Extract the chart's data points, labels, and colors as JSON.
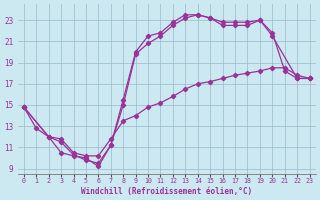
{
  "xlabel": "Windchill (Refroidissement éolien,°C)",
  "bg_color": "#cce8f0",
  "line_color": "#993399",
  "grid_color": "#99bbcc",
  "xlim": [
    -0.5,
    23.5
  ],
  "ylim": [
    8.5,
    24.5
  ],
  "xticks": [
    0,
    1,
    2,
    3,
    4,
    5,
    6,
    7,
    8,
    9,
    10,
    11,
    12,
    13,
    14,
    15,
    16,
    17,
    18,
    19,
    20,
    21,
    22,
    23
  ],
  "yticks": [
    9,
    11,
    13,
    15,
    17,
    19,
    21,
    23
  ],
  "curve1_x": [
    0,
    1,
    2,
    3,
    4,
    5,
    6,
    7,
    8,
    9,
    10,
    11,
    12,
    13,
    14,
    15,
    16,
    17,
    18,
    19,
    20,
    22,
    23
  ],
  "curve1_y": [
    14.8,
    12.8,
    12.0,
    10.5,
    10.2,
    10.0,
    9.2,
    11.2,
    15.5,
    20.0,
    21.5,
    21.8,
    22.8,
    23.5,
    23.5,
    23.2,
    22.5,
    22.5,
    22.5,
    23.0,
    21.5,
    17.5,
    17.5
  ],
  "curve2_x": [
    0,
    2,
    3,
    4,
    5,
    6,
    7,
    8,
    9,
    10,
    11,
    12,
    13,
    14,
    15,
    16,
    17,
    18,
    19,
    20,
    21,
    22,
    23
  ],
  "curve2_y": [
    14.8,
    12.0,
    11.5,
    10.3,
    9.8,
    9.5,
    11.2,
    15.0,
    19.8,
    20.8,
    21.5,
    22.5,
    23.2,
    23.5,
    23.2,
    22.8,
    22.8,
    22.8,
    23.0,
    21.8,
    18.2,
    17.5,
    17.5
  ],
  "curve3_x": [
    0,
    2,
    3,
    4,
    5,
    6,
    7,
    8,
    9,
    10,
    11,
    12,
    13,
    14,
    15,
    16,
    17,
    18,
    19,
    20,
    21,
    22,
    23
  ],
  "curve3_y": [
    14.8,
    12.0,
    11.8,
    10.5,
    10.2,
    10.2,
    11.8,
    13.5,
    14.0,
    14.8,
    15.2,
    15.8,
    16.5,
    17.0,
    17.2,
    17.5,
    17.8,
    18.0,
    18.2,
    18.5,
    18.5,
    17.8,
    17.5
  ]
}
